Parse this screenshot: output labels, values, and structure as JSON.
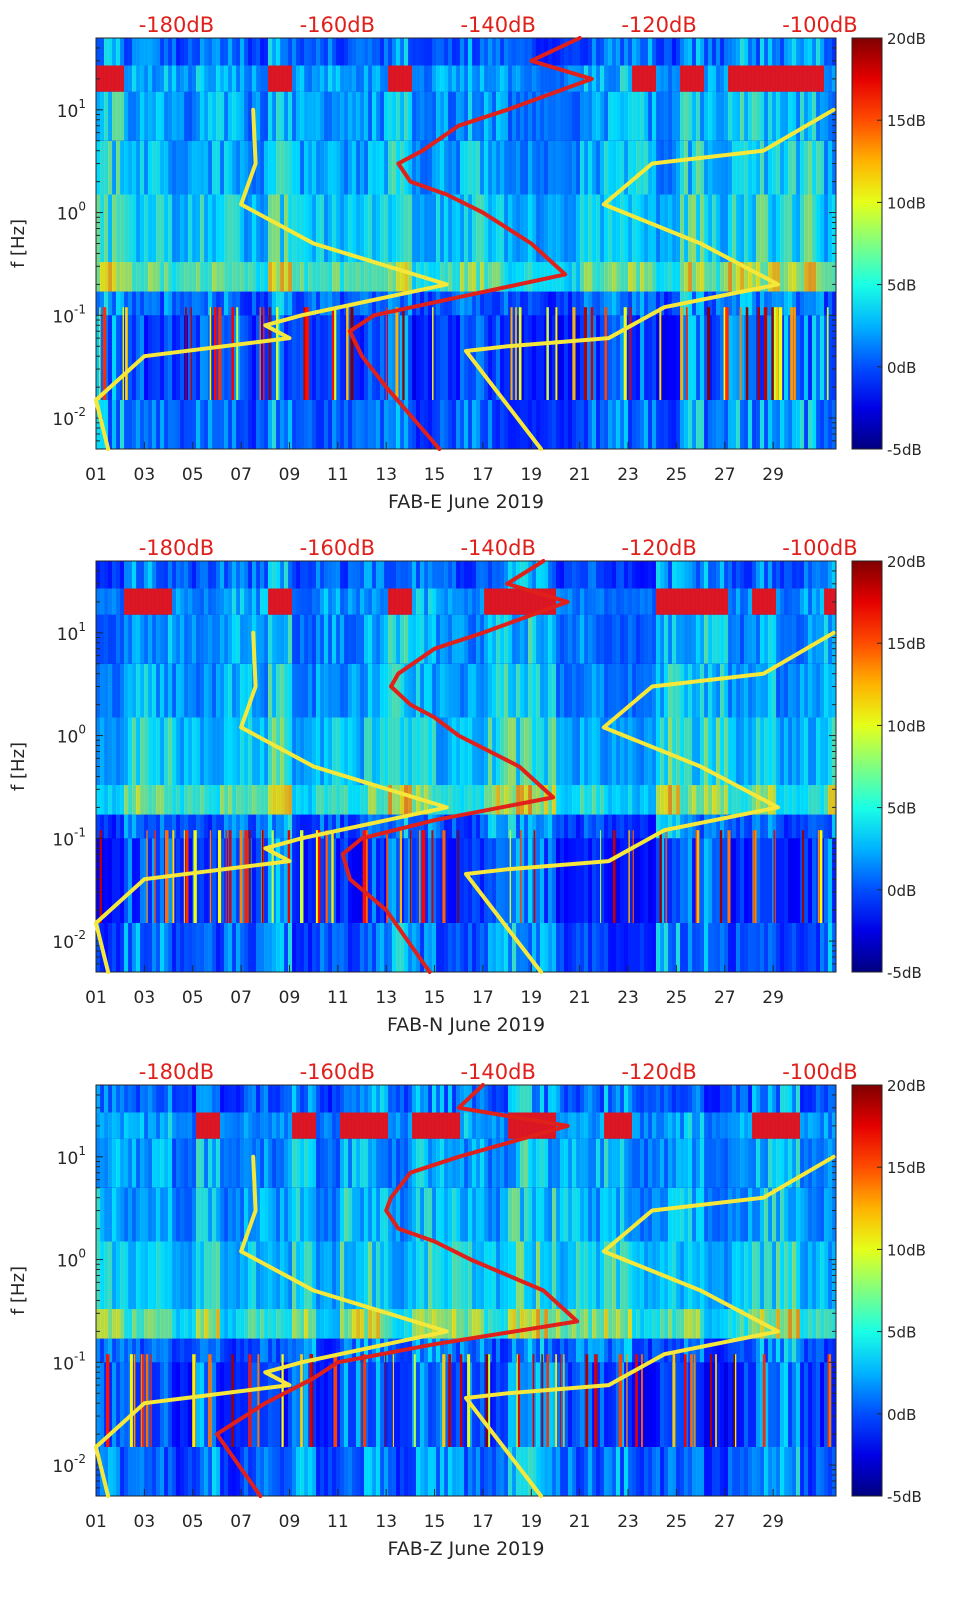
{
  "figure": {
    "title": ""
  },
  "chart_data": [
    {
      "type": "heatmap",
      "title": "FAB-E June 2019",
      "xlabel": "FAB-E June 2019",
      "ylabel": "f [Hz]",
      "xlim": [
        1,
        31.6
      ],
      "ylim": [
        0.005,
        50
      ],
      "x_tick_labels": [
        "01",
        "03",
        "05",
        "07",
        "09",
        "11",
        "13",
        "15",
        "17",
        "19",
        "21",
        "23",
        "25",
        "27",
        "29"
      ],
      "y_ticks": [
        {
          "base": "10",
          "exp": "-2"
        },
        {
          "base": "10",
          "exp": "-1"
        },
        {
          "base": "10",
          "exp": "0"
        },
        {
          "base": "10",
          "exp": "1"
        }
      ],
      "top_axis_labels": [
        "-180dB",
        "-160dB",
        "-140dB",
        "-120dB",
        "-100dB"
      ],
      "top_axis_range": [
        -190,
        -98
      ],
      "colorbar": {
        "labels": [
          "20dB",
          "15dB",
          "10dB",
          "5dB",
          "0dB",
          "-5dB"
        ],
        "range": [
          -5,
          20
        ]
      },
      "series": [
        {
          "name": "yellow-left",
          "color": "#f5e83a",
          "points": [
            [
              7.5,
              10
            ],
            [
              7.6,
              3
            ],
            [
              7.0,
              1.2
            ],
            [
              10,
              0.5
            ],
            [
              15.5,
              0.2
            ],
            [
              9.5,
              0.1
            ],
            [
              8.0,
              0.08
            ],
            [
              9.0,
              0.06
            ],
            [
              3.0,
              0.04
            ],
            [
              1.0,
              0.015
            ],
            [
              1.5,
              0.005
            ]
          ]
        },
        {
          "name": "yellow-right",
          "color": "#f5e83a",
          "points": [
            [
              31.5,
              10
            ],
            [
              28.6,
              4
            ],
            [
              24.0,
              3
            ],
            [
              22.0,
              1.2
            ],
            [
              26,
              0.5
            ],
            [
              29.2,
              0.2
            ],
            [
              24.5,
              0.12
            ],
            [
              22.2,
              0.06
            ],
            [
              18.0,
              0.05
            ],
            [
              16.3,
              0.045
            ],
            [
              19.4,
              0.005
            ]
          ]
        },
        {
          "name": "red",
          "color": "#e0201b",
          "points": [
            [
              21,
              50
            ],
            [
              19,
              30
            ],
            [
              21.5,
              20
            ],
            [
              18,
              10
            ],
            [
              16,
              7
            ],
            [
              14.5,
              4
            ],
            [
              13.5,
              3
            ],
            [
              14,
              2
            ],
            [
              15.5,
              1.5
            ],
            [
              17,
              1
            ],
            [
              19,
              0.5
            ],
            [
              20.4,
              0.25
            ],
            [
              16,
              0.15
            ],
            [
              12.5,
              0.1
            ],
            [
              11.5,
              0.07
            ],
            [
              12,
              0.04
            ],
            [
              13,
              0.02
            ],
            [
              15.2,
              0.005
            ]
          ]
        }
      ]
    },
    {
      "type": "heatmap",
      "title": "FAB-N June 2019",
      "xlabel": "FAB-N June 2019",
      "ylabel": "f [Hz]",
      "xlim": [
        1,
        31.6
      ],
      "ylim": [
        0.005,
        50
      ],
      "x_tick_labels": [
        "01",
        "03",
        "05",
        "07",
        "09",
        "11",
        "13",
        "15",
        "17",
        "19",
        "21",
        "23",
        "25",
        "27",
        "29"
      ],
      "y_ticks": [
        {
          "base": "10",
          "exp": "-2"
        },
        {
          "base": "10",
          "exp": "-1"
        },
        {
          "base": "10",
          "exp": "0"
        },
        {
          "base": "10",
          "exp": "1"
        }
      ],
      "top_axis_labels": [
        "-180dB",
        "-160dB",
        "-140dB",
        "-120dB",
        "-100dB"
      ],
      "top_axis_range": [
        -190,
        -98
      ],
      "colorbar": {
        "labels": [
          "20dB",
          "15dB",
          "10dB",
          "5dB",
          "0dB",
          "-5dB"
        ],
        "range": [
          -5,
          20
        ]
      },
      "series": [
        {
          "name": "yellow-left",
          "color": "#f5e83a",
          "points": [
            [
              7.5,
              10
            ],
            [
              7.6,
              3
            ],
            [
              7.0,
              1.2
            ],
            [
              10,
              0.5
            ],
            [
              15.5,
              0.2
            ],
            [
              9.5,
              0.1
            ],
            [
              8.0,
              0.08
            ],
            [
              9.0,
              0.06
            ],
            [
              3.0,
              0.04
            ],
            [
              1.0,
              0.015
            ],
            [
              1.5,
              0.005
            ]
          ]
        },
        {
          "name": "yellow-right",
          "color": "#f5e83a",
          "points": [
            [
              31.5,
              10
            ],
            [
              28.6,
              4
            ],
            [
              24.0,
              3
            ],
            [
              22.0,
              1.2
            ],
            [
              26,
              0.5
            ],
            [
              29.2,
              0.2
            ],
            [
              24.5,
              0.12
            ],
            [
              22.2,
              0.06
            ],
            [
              18.0,
              0.05
            ],
            [
              16.3,
              0.045
            ],
            [
              19.4,
              0.005
            ]
          ]
        },
        {
          "name": "red",
          "color": "#e0201b",
          "points": [
            [
              19.5,
              50
            ],
            [
              18,
              30
            ],
            [
              20.5,
              20
            ],
            [
              17,
              10
            ],
            [
              15,
              7
            ],
            [
              13.5,
              4
            ],
            [
              13.2,
              3
            ],
            [
              14,
              2
            ],
            [
              15,
              1.5
            ],
            [
              16,
              1
            ],
            [
              18.5,
              0.5
            ],
            [
              19.9,
              0.25
            ],
            [
              15,
              0.15
            ],
            [
              12,
              0.1
            ],
            [
              11.2,
              0.07
            ],
            [
              11.5,
              0.04
            ],
            [
              13,
              0.02
            ],
            [
              14.8,
              0.005
            ]
          ]
        }
      ]
    },
    {
      "type": "heatmap",
      "title": "FAB-Z June 2019",
      "xlabel": "FAB-Z June 2019",
      "ylabel": "f [Hz]",
      "xlim": [
        1,
        31.6
      ],
      "ylim": [
        0.005,
        50
      ],
      "x_tick_labels": [
        "01",
        "03",
        "05",
        "07",
        "09",
        "11",
        "13",
        "15",
        "17",
        "19",
        "21",
        "23",
        "25",
        "27",
        "29"
      ],
      "y_ticks": [
        {
          "base": "10",
          "exp": "-2"
        },
        {
          "base": "10",
          "exp": "-1"
        },
        {
          "base": "10",
          "exp": "0"
        },
        {
          "base": "10",
          "exp": "1"
        }
      ],
      "top_axis_labels": [
        "-180dB",
        "-160dB",
        "-140dB",
        "-120dB",
        "-100dB"
      ],
      "top_axis_range": [
        -190,
        -98
      ],
      "colorbar": {
        "labels": [
          "20dB",
          "15dB",
          "10dB",
          "5dB",
          "0dB",
          "-5dB"
        ],
        "range": [
          -5,
          20
        ]
      },
      "series": [
        {
          "name": "yellow-left",
          "color": "#f5e83a",
          "points": [
            [
              7.5,
              10
            ],
            [
              7.6,
              3
            ],
            [
              7.0,
              1.2
            ],
            [
              10,
              0.5
            ],
            [
              15.5,
              0.2
            ],
            [
              9.5,
              0.1
            ],
            [
              8.0,
              0.08
            ],
            [
              9.0,
              0.06
            ],
            [
              3.0,
              0.04
            ],
            [
              1.0,
              0.015
            ],
            [
              1.5,
              0.005
            ]
          ]
        },
        {
          "name": "yellow-right",
          "color": "#f5e83a",
          "points": [
            [
              31.5,
              10
            ],
            [
              28.6,
              4
            ],
            [
              24.0,
              3
            ],
            [
              22.0,
              1.2
            ],
            [
              26,
              0.5
            ],
            [
              29.2,
              0.2
            ],
            [
              24.5,
              0.12
            ],
            [
              22.2,
              0.06
            ],
            [
              18.0,
              0.05
            ],
            [
              16.3,
              0.045
            ],
            [
              19.4,
              0.005
            ]
          ]
        },
        {
          "name": "red",
          "color": "#e0201b",
          "points": [
            [
              17,
              50
            ],
            [
              16,
              30
            ],
            [
              20.5,
              20
            ],
            [
              16,
              10
            ],
            [
              14,
              7
            ],
            [
              13.2,
              4
            ],
            [
              13,
              3
            ],
            [
              13.5,
              2
            ],
            [
              15,
              1.5
            ],
            [
              16.5,
              1
            ],
            [
              19.5,
              0.5
            ],
            [
              20.9,
              0.25
            ],
            [
              15,
              0.15
            ],
            [
              11,
              0.1
            ],
            [
              10,
              0.07
            ],
            [
              8,
              0.04
            ],
            [
              6,
              0.02
            ],
            [
              7.8,
              0.005
            ]
          ]
        }
      ]
    }
  ]
}
